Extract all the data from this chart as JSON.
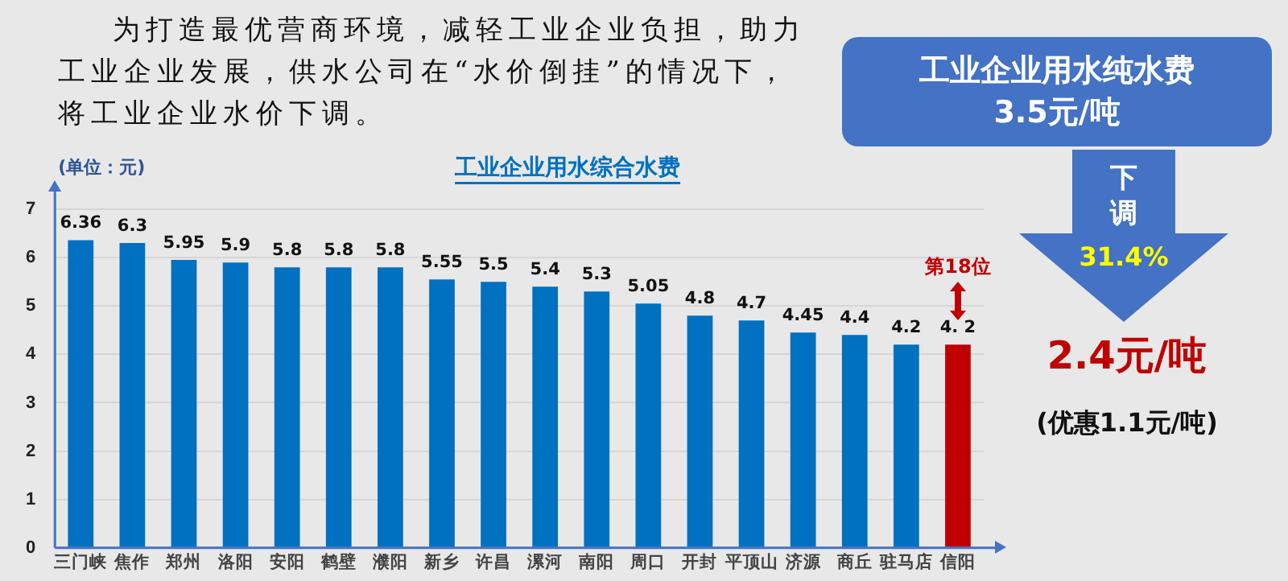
{
  "chart_data": {
    "type": "bar",
    "title": "工业企业用水综合水费",
    "ylabel": "(单位：元)",
    "categories": [
      "三门峡",
      "焦作",
      "郑州",
      "洛阳",
      "安阳",
      "鹤壁",
      "濮阳",
      "新乡",
      "许昌",
      "漯河",
      "南阳",
      "周口",
      "开封",
      "平顶山",
      "济源",
      "商丘",
      "驻马店",
      "信阳"
    ],
    "values": [
      6.36,
      6.3,
      5.95,
      5.9,
      5.8,
      5.8,
      5.8,
      5.55,
      5.5,
      5.4,
      5.3,
      5.05,
      4.8,
      4.7,
      4.45,
      4.4,
      4.2,
      4.2
    ],
    "value_labels": [
      "6.36",
      "6.3",
      "5.95",
      "5.9",
      "5.8",
      "5.8",
      "5.8",
      "5.55",
      "5.5",
      "5.4",
      "5.3",
      "5.05",
      "4.8",
      "4.7",
      "4.45",
      "4.4",
      "4.2",
      "4. 2"
    ],
    "colors": [
      "#0070c0",
      "#0070c0",
      "#0070c0",
      "#0070c0",
      "#0070c0",
      "#0070c0",
      "#0070c0",
      "#0070c0",
      "#0070c0",
      "#0070c0",
      "#0070c0",
      "#0070c0",
      "#0070c0",
      "#0070c0",
      "#0070c0",
      "#0070c0",
      "#0070c0",
      "#c00000"
    ],
    "ylim": [
      0,
      7
    ],
    "yticks": [
      0,
      1,
      2,
      3,
      4,
      5,
      6,
      7
    ],
    "grid": "y",
    "legend": false,
    "annotations": [
      "为打造最优营商环境，减轻工业企业负担，助力工业企业发展，供水公司在“水价倒挂”的情况下，将工业企业水价下调。",
      "工业企业用水纯水费\n3.5元/吨",
      "下调",
      "31.4%",
      "2.4元/吨",
      "(优惠1.1元/吨)",
      "第18位"
    ]
  }
}
